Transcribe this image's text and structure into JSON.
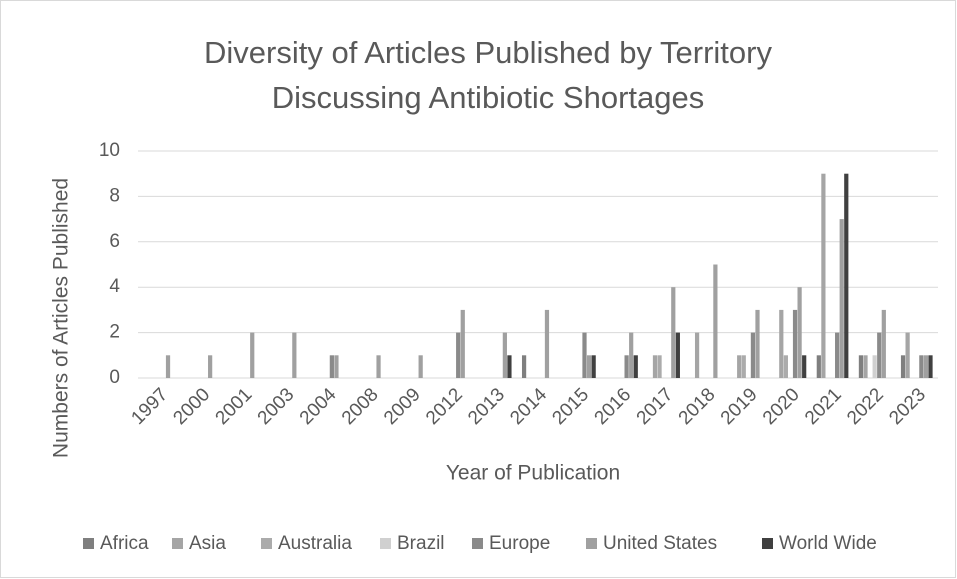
{
  "chart_data": {
    "type": "bar",
    "title": [
      "Diversity of Articles Published by Territory",
      "Discussing Antibiotic Shortages"
    ],
    "x_label": "Year of Publication",
    "y_label": "Numbers of Articles Published",
    "categories": [
      "1997",
      "2000",
      "2001",
      "2003",
      "2004",
      "2008",
      "2009",
      "2012",
      "2013",
      "2014",
      "2015",
      "2016",
      "2017",
      "2018",
      "2019",
      "2020",
      "2021",
      "2022",
      "2023"
    ],
    "series": [
      {
        "name": "Africa",
        "color": "#7f7f7f",
        "values": [
          0,
          0,
          0,
          0,
          0,
          0,
          0,
          0,
          0,
          1,
          0,
          0,
          0,
          0,
          0,
          0,
          1,
          1,
          1
        ]
      },
      {
        "name": "Asia",
        "color": "#a5a5a5",
        "values": [
          0,
          0,
          0,
          0,
          0,
          0,
          0,
          0,
          0,
          0,
          0,
          0,
          1,
          2,
          1,
          3,
          9,
          1,
          2
        ]
      },
      {
        "name": "Australia",
        "color": "#ababab",
        "values": [
          0,
          0,
          0,
          0,
          0,
          0,
          0,
          0,
          0,
          0,
          0,
          0,
          1,
          0,
          1,
          1,
          0,
          0,
          0
        ]
      },
      {
        "name": "Brazil",
        "color": "#d0d0d0",
        "values": [
          0,
          0,
          0,
          0,
          0,
          0,
          0,
          0,
          0,
          0,
          0,
          0,
          0,
          0,
          0,
          0,
          0,
          1,
          0
        ]
      },
      {
        "name": "Europe",
        "color": "#8a8a8a",
        "values": [
          0,
          0,
          0,
          0,
          1,
          0,
          0,
          2,
          0,
          0,
          2,
          1,
          0,
          0,
          2,
          3,
          2,
          2,
          1
        ]
      },
      {
        "name": "United States",
        "color": "#a0a0a0",
        "values": [
          1,
          1,
          2,
          2,
          1,
          1,
          1,
          3,
          2,
          3,
          1,
          2,
          4,
          5,
          3,
          4,
          7,
          3,
          1
        ]
      },
      {
        "name": "World Wide",
        "color": "#404040",
        "values": [
          0,
          0,
          0,
          0,
          0,
          0,
          0,
          0,
          1,
          0,
          1,
          1,
          2,
          0,
          0,
          1,
          9,
          0,
          1
        ]
      }
    ],
    "ylim": [
      0,
      10
    ],
    "yticks": [
      0,
      2,
      4,
      6,
      8,
      10
    ],
    "grid": true,
    "legend": "bottom"
  }
}
